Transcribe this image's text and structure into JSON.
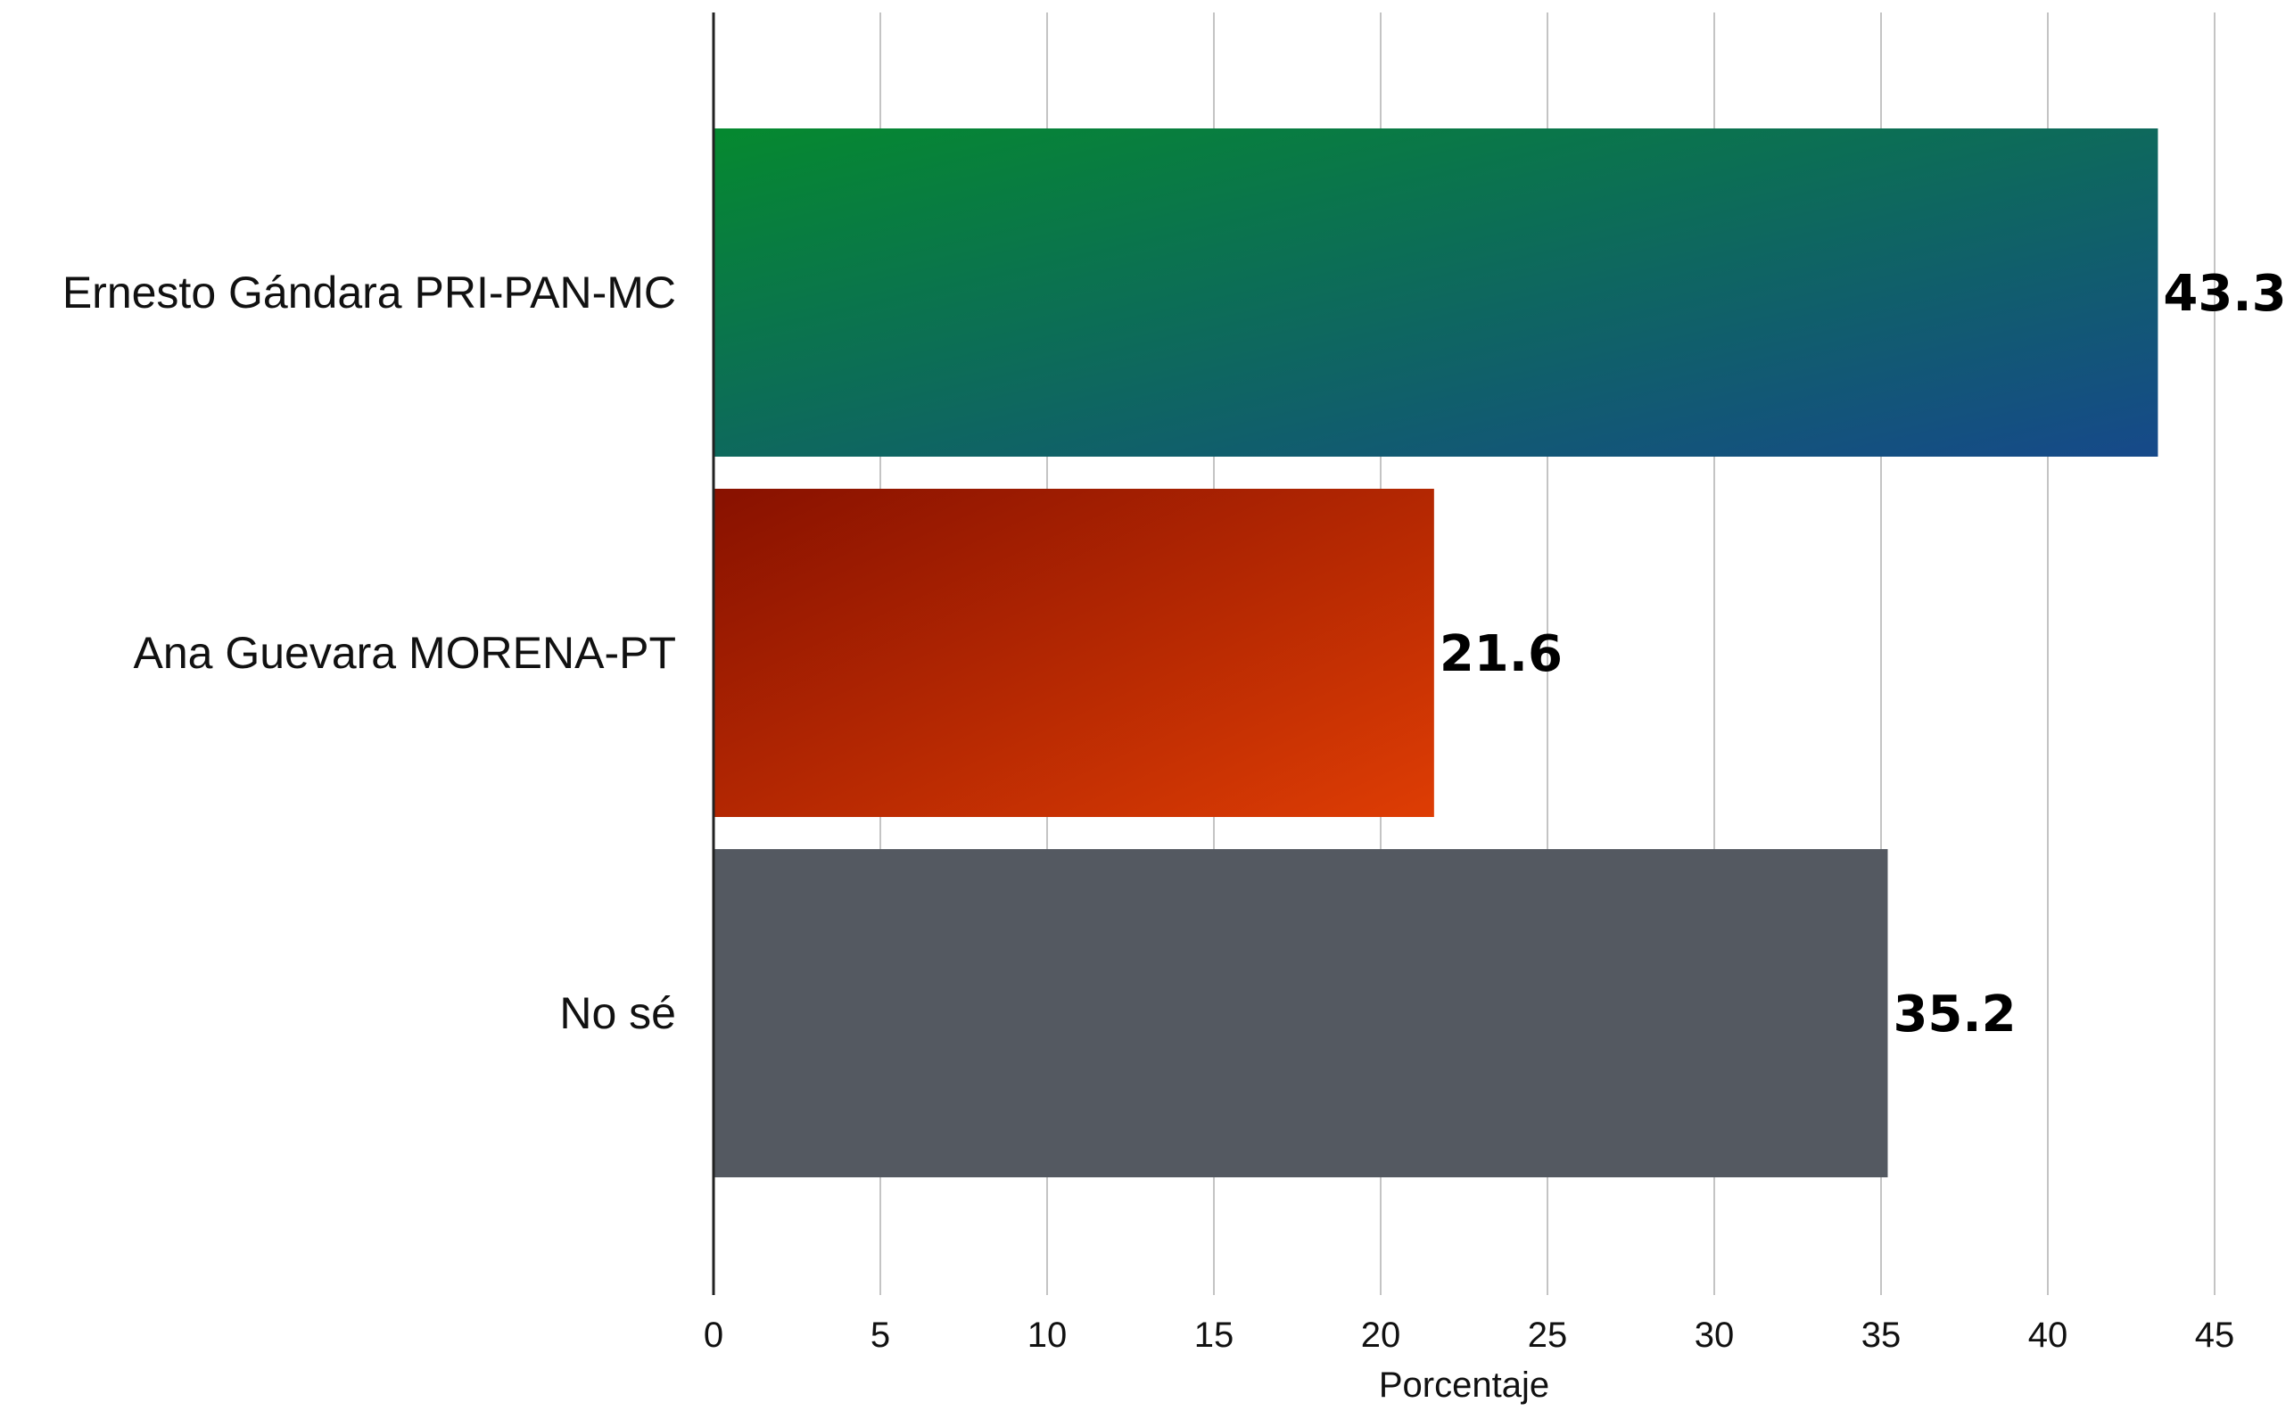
{
  "chart_data": {
    "type": "bar",
    "orientation": "horizontal",
    "categories": [
      "Ernesto Gándara PRI-PAN-MC",
      "Ana Guevara MORENA-PT",
      "No sé"
    ],
    "values": [
      43.3,
      21.6,
      35.2
    ],
    "value_labels": [
      "43.3",
      "21.6",
      "35.2"
    ],
    "title": "",
    "xlabel": "Porcentaje",
    "ylabel": "",
    "xlim": [
      0,
      45
    ],
    "xticks": [
      0,
      5,
      10,
      15,
      20,
      25,
      30,
      35,
      40,
      45
    ],
    "xtick_labels": [
      "0",
      "5",
      "10",
      "15",
      "20",
      "25",
      "30",
      "35",
      "40",
      "45"
    ],
    "grid": "vertical",
    "legend": "none",
    "bar_colors": [
      {
        "from": "#05892f",
        "to": "#16498a"
      },
      {
        "from": "#881100",
        "to": "#de3d04"
      },
      {
        "from": "#545961",
        "to": "#545961"
      }
    ]
  }
}
